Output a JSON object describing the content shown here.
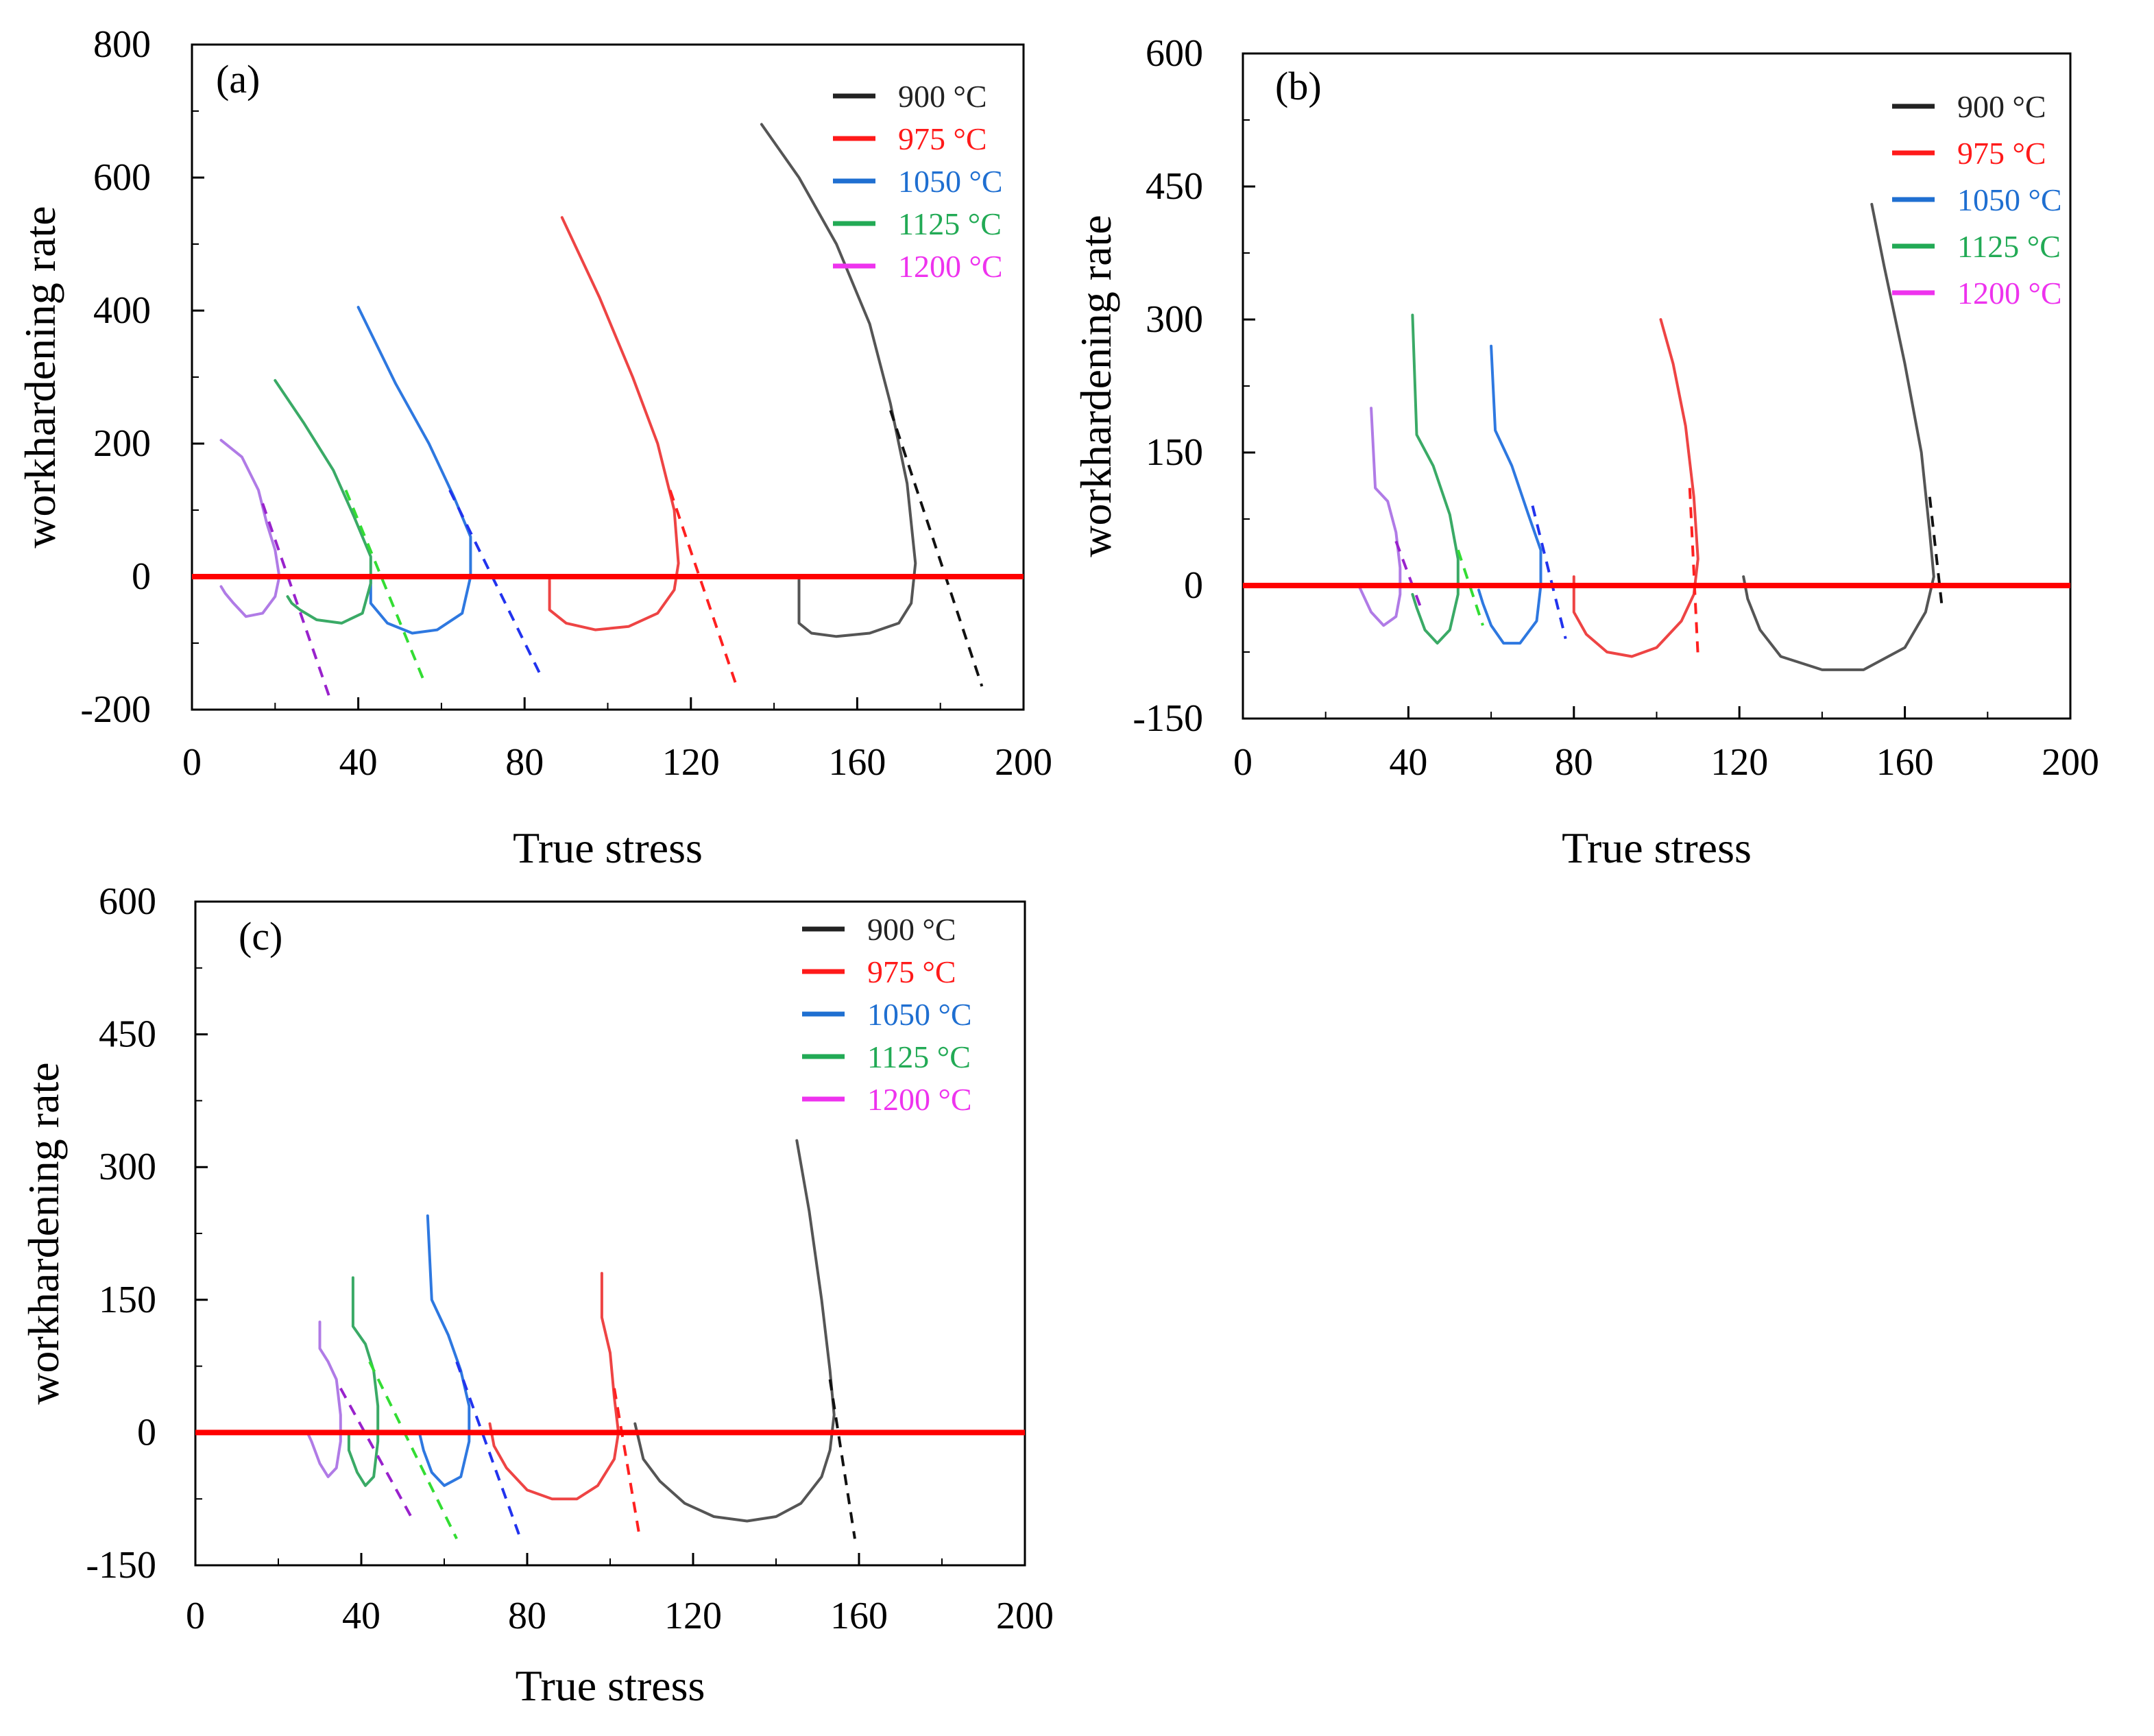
{
  "colors": {
    "900": "#222222",
    "975": "#ff1a1a",
    "1050": "#1f6fd1",
    "1125": "#22aa55",
    "1200": "#ee33ee",
    "curve_900": "#555555",
    "curve_975": "#ee4444",
    "curve_1050": "#2e78e0",
    "curve_1125": "#3aaa66",
    "curve_1200": "#b07be6",
    "dash_900": "#111111",
    "dash_975": "#ff2020",
    "dash_1050": "#2233ee",
    "dash_1125": "#33dd33",
    "dash_1200": "#9922cc",
    "zero_line": "#ff0000"
  },
  "chart_data": [
    {
      "id": "a",
      "type": "line",
      "label": "(a)",
      "xlabel": "True stress",
      "ylabel": "workhardening rate",
      "xlim": [
        0,
        200
      ],
      "ylim": [
        -200,
        800
      ],
      "xticks": [
        0,
        40,
        80,
        120,
        160,
        200
      ],
      "yticks": [
        -200,
        0,
        200,
        400,
        600,
        800
      ],
      "ytick_labels": [
        "-200",
        "0",
        "200",
        "400",
        "600",
        "800"
      ],
      "zero_line": 0,
      "legend": [
        {
          "key": "900",
          "label": "900 °C"
        },
        {
          "key": "975",
          "label": "975 °C"
        },
        {
          "key": "1050",
          "label": "1050 °C"
        },
        {
          "key": "1125",
          "label": "1125 °C"
        },
        {
          "key": "1200",
          "label": "1200 °C"
        }
      ],
      "series": [
        {
          "key": "900",
          "name": "900 °C",
          "x": [
            137,
            146,
            155,
            163,
            168,
            172,
            174,
            173,
            170,
            163,
            155,
            149,
            146,
            146
          ],
          "y": [
            680,
            600,
            500,
            380,
            260,
            140,
            20,
            -40,
            -70,
            -85,
            -90,
            -85,
            -70,
            -5
          ],
          "tangent": [
            [
              168,
              250
            ],
            [
              190,
              -165
            ]
          ]
        },
        {
          "key": "975",
          "name": "975 °C",
          "x": [
            89,
            98,
            106,
            112,
            116,
            117,
            116,
            112,
            105,
            97,
            90,
            86,
            86
          ],
          "y": [
            540,
            420,
            300,
            200,
            100,
            20,
            -20,
            -55,
            -75,
            -80,
            -70,
            -50,
            -5
          ],
          "tangent": [
            [
              115,
              130
            ],
            [
              131,
              -165
            ]
          ]
        },
        {
          "key": "1050",
          "name": "1050 °C",
          "x": [
            40,
            49,
            57,
            63,
            67,
            67,
            65,
            59,
            53,
            47,
            43,
            43
          ],
          "y": [
            405,
            290,
            200,
            120,
            60,
            0,
            -55,
            -80,
            -85,
            -70,
            -40,
            0
          ],
          "tangent": [
            [
              62,
              130
            ],
            [
              84,
              -150
            ]
          ]
        },
        {
          "key": "1125",
          "name": "1125 °C",
          "x": [
            20,
            27,
            34,
            39,
            43,
            43,
            41,
            36,
            30,
            26,
            24,
            23
          ],
          "y": [
            295,
            230,
            160,
            90,
            30,
            -10,
            -55,
            -70,
            -65,
            -50,
            -40,
            -30
          ],
          "tangent": [
            [
              37,
              130
            ],
            [
              56,
              -160
            ]
          ]
        },
        {
          "key": "1200",
          "name": "1200 °C",
          "x": [
            7,
            12,
            16,
            18,
            20,
            21,
            20,
            17,
            13,
            10,
            8,
            7
          ],
          "y": [
            205,
            180,
            130,
            80,
            40,
            0,
            -30,
            -55,
            -60,
            -40,
            -25,
            -15
          ],
          "tangent": [
            [
              17,
              110
            ],
            [
              33,
              -180
            ]
          ]
        }
      ]
    },
    {
      "id": "b",
      "type": "line",
      "label": "(b)",
      "xlabel": "True stress",
      "ylabel": "workhardening rate",
      "xlim": [
        0,
        200
      ],
      "ylim": [
        -150,
        600
      ],
      "xticks": [
        0,
        40,
        80,
        120,
        160,
        200
      ],
      "yticks": [
        -150,
        0,
        150,
        300,
        450,
        600
      ],
      "ytick_labels": [
        "-150",
        "0",
        "150",
        "300",
        "450",
        "600"
      ],
      "zero_line": 0,
      "legend": [
        {
          "key": "900",
          "label": "900 °C"
        },
        {
          "key": "975",
          "label": "975 °C"
        },
        {
          "key": "1050",
          "label": "1050 °C"
        },
        {
          "key": "1125",
          "label": "1125 °C"
        },
        {
          "key": "1200",
          "label": "1200 °C"
        }
      ],
      "series": [
        {
          "key": "900",
          "name": "900 °C",
          "x": [
            152,
            155,
            160,
            164,
            166,
            167,
            165,
            160,
            150,
            140,
            130,
            125,
            122,
            121
          ],
          "y": [
            430,
            360,
            250,
            150,
            60,
            10,
            -30,
            -70,
            -95,
            -95,
            -80,
            -50,
            -15,
            10
          ],
          "tangent": [
            [
              166,
              100
            ],
            [
              169,
              -25
            ]
          ]
        },
        {
          "key": "975",
          "name": "975 °C",
          "x": [
            101,
            104,
            107,
            109,
            110,
            109,
            106,
            100,
            94,
            88,
            83,
            80,
            80
          ],
          "y": [
            300,
            250,
            180,
            100,
            30,
            -10,
            -40,
            -70,
            -80,
            -75,
            -55,
            -30,
            10
          ],
          "tangent": [
            [
              108,
              110
            ],
            [
              110,
              -80
            ]
          ]
        },
        {
          "key": "1050",
          "name": "1050 °C",
          "x": [
            60,
            61,
            65,
            69,
            72,
            72,
            71,
            67,
            63,
            60,
            58,
            57
          ],
          "y": [
            270,
            175,
            135,
            80,
            40,
            0,
            -40,
            -65,
            -65,
            -45,
            -20,
            -5
          ],
          "tangent": [
            [
              70,
              90
            ],
            [
              78,
              -60
            ]
          ]
        },
        {
          "key": "1125",
          "name": "1125 °C",
          "x": [
            41,
            42,
            46,
            50,
            52,
            52,
            50,
            47,
            44,
            42,
            41
          ],
          "y": [
            305,
            170,
            135,
            80,
            30,
            -10,
            -50,
            -65,
            -50,
            -25,
            -10
          ],
          "tangent": [
            [
              52,
              40
            ],
            [
              58,
              -45
            ]
          ]
        },
        {
          "key": "1200",
          "name": "1200 °C",
          "x": [
            31,
            32,
            35,
            37,
            38,
            38,
            37,
            34,
            31,
            29,
            28
          ],
          "y": [
            200,
            110,
            95,
            60,
            20,
            -10,
            -35,
            -45,
            -30,
            -10,
            0
          ],
          "tangent": [
            [
              37,
              50
            ],
            [
              43,
              -25
            ]
          ]
        }
      ]
    },
    {
      "id": "c",
      "type": "line",
      "label": "(c)",
      "xlabel": "True stress",
      "ylabel": "workhardening rate",
      "xlim": [
        0,
        200
      ],
      "ylim": [
        -150,
        600
      ],
      "xticks": [
        0,
        40,
        80,
        120,
        160,
        200
      ],
      "yticks": [
        -150,
        0,
        150,
        300,
        450,
        600
      ],
      "ytick_labels": [
        "-150",
        "0",
        "150",
        "300",
        "450",
        "600"
      ],
      "zero_line": 0,
      "legend": [
        {
          "key": "900",
          "label": "900 °C"
        },
        {
          "key": "975",
          "label": "975 °C"
        },
        {
          "key": "1050",
          "label": "1050 °C"
        },
        {
          "key": "1125",
          "label": "1125 °C"
        },
        {
          "key": "1200",
          "label": "1200 °C"
        }
      ],
      "series": [
        {
          "key": "900",
          "name": "900 °C",
          "x": [
            145,
            148,
            151,
            153,
            154,
            153,
            151,
            146,
            140,
            133,
            125,
            118,
            112,
            108,
            106
          ],
          "y": [
            330,
            250,
            150,
            70,
            20,
            -20,
            -50,
            -80,
            -95,
            -100,
            -95,
            -80,
            -55,
            -30,
            10
          ],
          "tangent": [
            [
              153,
              60
            ],
            [
              159,
              -120
            ]
          ]
        },
        {
          "key": "975",
          "name": "975 °C",
          "x": [
            98,
            98,
            100,
            101,
            102,
            101,
            97,
            92,
            86,
            80,
            75,
            72,
            71
          ],
          "y": [
            180,
            130,
            90,
            40,
            0,
            -30,
            -60,
            -75,
            -75,
            -65,
            -40,
            -15,
            10
          ],
          "tangent": [
            [
              101,
              50
            ],
            [
              107,
              -115
            ]
          ]
        },
        {
          "key": "1050",
          "name": "1050 °C",
          "x": [
            56,
            57,
            61,
            64,
            66,
            66,
            64,
            60,
            57,
            55,
            54
          ],
          "y": [
            245,
            150,
            110,
            70,
            30,
            -10,
            -50,
            -60,
            -45,
            -20,
            0
          ],
          "tangent": [
            [
              63,
              80
            ],
            [
              78,
              -115
            ]
          ]
        },
        {
          "key": "1125",
          "name": "1125 °C",
          "x": [
            38,
            38,
            41,
            43,
            44,
            44,
            43,
            41,
            39,
            37,
            37
          ],
          "y": [
            175,
            120,
            100,
            70,
            30,
            -10,
            -50,
            -60,
            -45,
            -20,
            0
          ],
          "tangent": [
            [
              42,
              80
            ],
            [
              63,
              -120
            ]
          ]
        },
        {
          "key": "1200",
          "name": "1200 °C",
          "x": [
            30,
            30,
            32,
            34,
            35,
            35,
            34,
            32,
            30,
            28,
            27
          ],
          "y": [
            125,
            95,
            80,
            60,
            20,
            -10,
            -40,
            -50,
            -35,
            -10,
            0
          ],
          "tangent": [
            [
              35,
              50
            ],
            [
              52,
              -95
            ]
          ]
        }
      ]
    }
  ]
}
